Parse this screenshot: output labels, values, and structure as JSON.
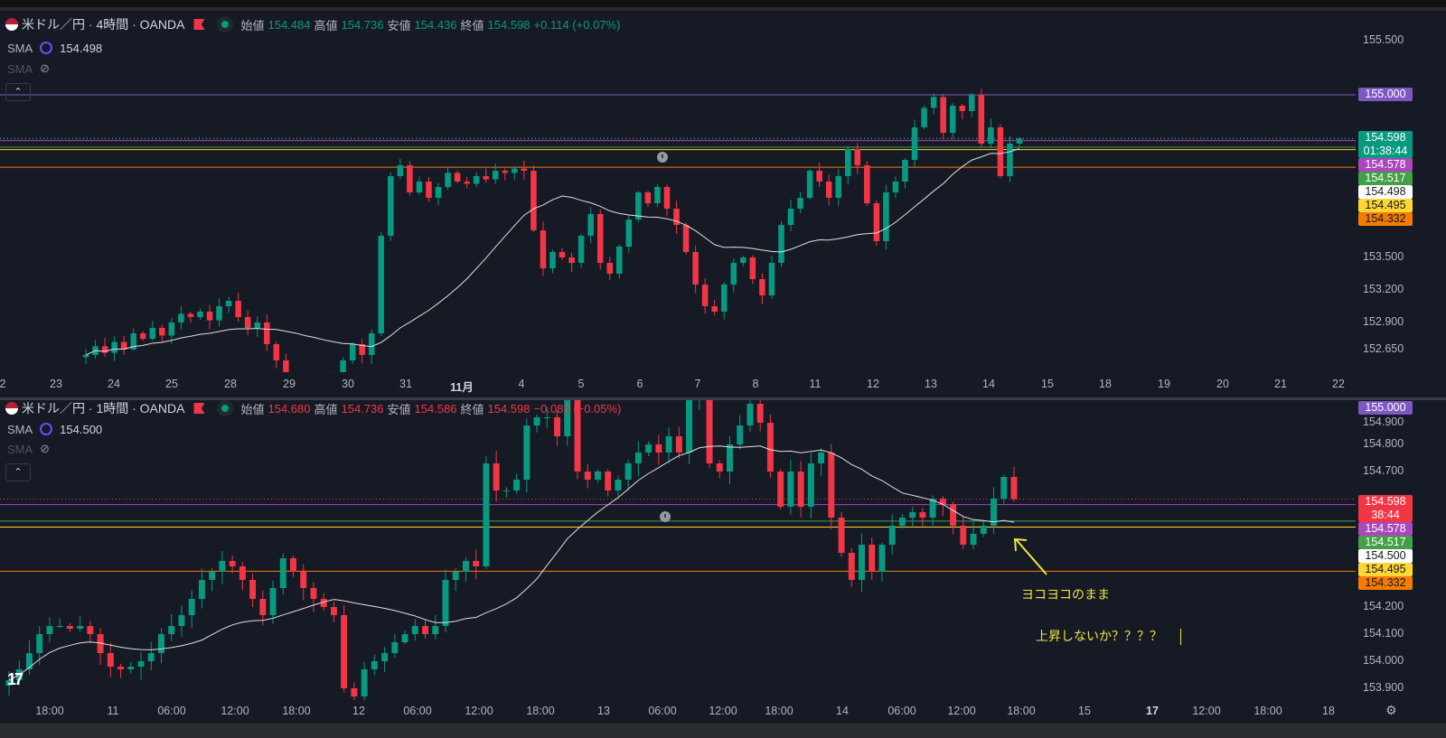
{
  "colors": {
    "up": "#089981",
    "down": "#f23645",
    "sma": "#e0e0e0",
    "annotation": "#f0e442"
  },
  "charts": [
    {
      "symbol": "米ドル／円 · 4時間 · OANDA",
      "ohlc": {
        "open_label": "始値",
        "open": "154.484",
        "high_label": "高値",
        "high": "154.736",
        "low_label": "安値",
        "low": "154.436",
        "close_label": "終値",
        "close": "154.598",
        "change": "+0.114 (+0.07%)",
        "direction": "up"
      },
      "sma": {
        "name": "SMA",
        "value": "154.498"
      },
      "sma2": {
        "name": "SMA"
      },
      "collapse_icon": "chevron-up-icon",
      "price_ticks": [
        "155.500",
        "153.500",
        "153.200",
        "152.900",
        "152.650"
      ],
      "time_ticks": [
        "2",
        "23",
        "24",
        "25",
        "28",
        "29",
        "30",
        "31",
        "11月",
        "4",
        "5",
        "6",
        "7",
        "8",
        "11",
        "12",
        "13",
        "14",
        "15",
        "18",
        "19",
        "20",
        "21",
        "22"
      ],
      "levels": [
        {
          "price": 155.0,
          "color": "#7e57c2",
          "style": "solid"
        },
        {
          "price": 154.598,
          "color": "#4dd0c4",
          "style": "dotted"
        },
        {
          "price": 154.578,
          "color": "#ab47bc",
          "style": "solid"
        },
        {
          "price": 154.517,
          "color": "#43a047",
          "style": "solid"
        },
        {
          "price": 154.495,
          "color": "#fdd835",
          "style": "solid"
        },
        {
          "price": 154.332,
          "color": "#f57c00",
          "style": "solid"
        }
      ],
      "price_labels": [
        {
          "text": "155.000",
          "bg": "#7e57c2",
          "fg": "#ffffff"
        },
        {
          "text": "154.598",
          "sub": "01:38:44",
          "bg": "#089981",
          "fg": "#ffffff"
        },
        {
          "text": "154.578",
          "bg": "#ab47bc",
          "fg": "#ffffff"
        },
        {
          "text": "154.517",
          "bg": "#43a047",
          "fg": "#ffffff"
        },
        {
          "text": "154.498",
          "bg": "#ffffff",
          "fg": "#131722"
        },
        {
          "text": "154.495",
          "bg": "#fdd835",
          "fg": "#131722"
        },
        {
          "text": "154.332",
          "bg": "#f57c00",
          "fg": "#131722"
        }
      ]
    },
    {
      "symbol": "米ドル／円 · 1時間 · OANDA",
      "ohlc": {
        "open_label": "始値",
        "open": "154.680",
        "high_label": "高値",
        "high": "154.736",
        "low_label": "安値",
        "low": "154.586",
        "close_label": "終値",
        "close": "154.598",
        "change": "−0.082 (−0.05%)",
        "direction": "down"
      },
      "sma": {
        "name": "SMA",
        "value": "154.500"
      },
      "sma2": {
        "name": "SMA"
      },
      "collapse_icon": "chevron-up-icon",
      "price_ticks": [
        "154.900",
        "154.800",
        "154.700",
        "154.200",
        "154.100",
        "154.000",
        "153.900"
      ],
      "time_ticks": [
        "18:00",
        "11",
        "06:00",
        "12:00",
        "18:00",
        "12",
        "06:00",
        "12:00",
        "18:00",
        "13",
        "06:00",
        "12:00",
        "18:00",
        "14",
        "06:00",
        "12:00",
        "18:00",
        "15",
        "17",
        "12:00",
        "18:00",
        "18"
      ],
      "levels": [
        {
          "price": 154.598,
          "color": "#f23645",
          "style": "dotted"
        },
        {
          "price": 154.578,
          "color": "#ab47bc",
          "style": "solid"
        },
        {
          "price": 154.517,
          "color": "#43a047",
          "style": "solid"
        },
        {
          "price": 154.495,
          "color": "#fdd835",
          "style": "solid"
        },
        {
          "price": 154.332,
          "color": "#f57c00",
          "style": "solid"
        }
      ],
      "price_labels": [
        {
          "text": "155.000",
          "bg": "#7e57c2",
          "fg": "#ffffff"
        },
        {
          "text": "154.598",
          "sub": "38:44",
          "bg": "#f23645",
          "fg": "#ffffff"
        },
        {
          "text": "154.578",
          "bg": "#ab47bc",
          "fg": "#ffffff"
        },
        {
          "text": "154.517",
          "bg": "#43a047",
          "fg": "#ffffff"
        },
        {
          "text": "154.500",
          "bg": "#ffffff",
          "fg": "#131722"
        },
        {
          "text": "154.495",
          "bg": "#fdd835",
          "fg": "#131722"
        },
        {
          "text": "154.332",
          "bg": "#f57c00",
          "fg": "#131722"
        }
      ],
      "annotations": [
        "ヨコヨコのまま",
        "上昇しないか？？？？"
      ]
    }
  ],
  "chart_data": [
    {
      "type": "candlestick",
      "title": "米ドル／円 · 4時間 · OANDA",
      "indicator": "SMA",
      "ylim": [
        152.5,
        155.6
      ],
      "closes": [
        152.6,
        152.68,
        152.62,
        152.72,
        152.65,
        152.8,
        152.75,
        152.85,
        152.78,
        152.9,
        152.98,
        152.95,
        153.0,
        152.92,
        153.05,
        153.1,
        152.95,
        152.85,
        152.9,
        152.7,
        152.55,
        152.35,
        152.3,
        152.25,
        152.3,
        152.35,
        152.4,
        152.55,
        152.7,
        152.6,
        152.8,
        153.7,
        154.25,
        154.35,
        154.1,
        154.2,
        154.05,
        154.15,
        154.28,
        154.2,
        154.18,
        154.25,
        154.22,
        154.3,
        154.28,
        154.32,
        154.3,
        153.75,
        153.4,
        153.55,
        153.5,
        153.45,
        153.7,
        153.9,
        153.45,
        153.35,
        153.6,
        153.85,
        154.1,
        154.0,
        154.15,
        153.95,
        153.8,
        153.55,
        153.25,
        153.05,
        153.0,
        153.25,
        153.45,
        153.5,
        153.3,
        153.15,
        153.45,
        153.8,
        153.95,
        154.05,
        154.3,
        154.2,
        154.05,
        154.25,
        154.5,
        154.35,
        154.0,
        153.65,
        154.1,
        154.2,
        154.4,
        154.7,
        154.88,
        154.98,
        154.65,
        154.9,
        154.85,
        155.0,
        154.55,
        154.7,
        154.25,
        154.55,
        154.598
      ]
    },
    {
      "type": "candlestick",
      "title": "米ドル／円 · 1時間 · OANDA",
      "indicator": "SMA",
      "ylim": [
        153.86,
        155.0
      ],
      "closes": [
        153.93,
        153.97,
        154.03,
        154.1,
        154.13,
        154.13,
        154.12,
        154.13,
        154.1,
        154.03,
        153.98,
        153.97,
        153.98,
        154.0,
        154.03,
        154.1,
        154.13,
        154.17,
        154.23,
        154.3,
        154.33,
        154.37,
        154.35,
        154.3,
        154.23,
        154.17,
        154.27,
        154.38,
        154.33,
        154.27,
        154.23,
        154.2,
        154.17,
        153.9,
        153.87,
        153.97,
        154.0,
        154.03,
        154.07,
        154.1,
        154.13,
        154.1,
        154.13,
        154.3,
        154.33,
        154.37,
        154.35,
        154.73,
        154.63,
        154.63,
        154.67,
        154.87,
        154.9,
        154.9,
        154.83,
        154.97,
        154.7,
        154.67,
        154.7,
        154.63,
        154.67,
        154.73,
        154.77,
        154.8,
        154.77,
        154.83,
        154.77,
        154.97,
        154.97,
        154.73,
        154.7,
        154.8,
        154.87,
        154.95,
        154.88,
        154.7,
        154.57,
        154.7,
        154.57,
        154.73,
        154.77,
        154.53,
        154.4,
        154.3,
        154.43,
        154.33,
        154.43,
        154.5,
        154.53,
        154.55,
        154.53,
        154.6,
        154.58,
        154.5,
        154.43,
        154.47,
        154.5,
        154.6,
        154.68,
        154.598
      ]
    }
  ]
}
